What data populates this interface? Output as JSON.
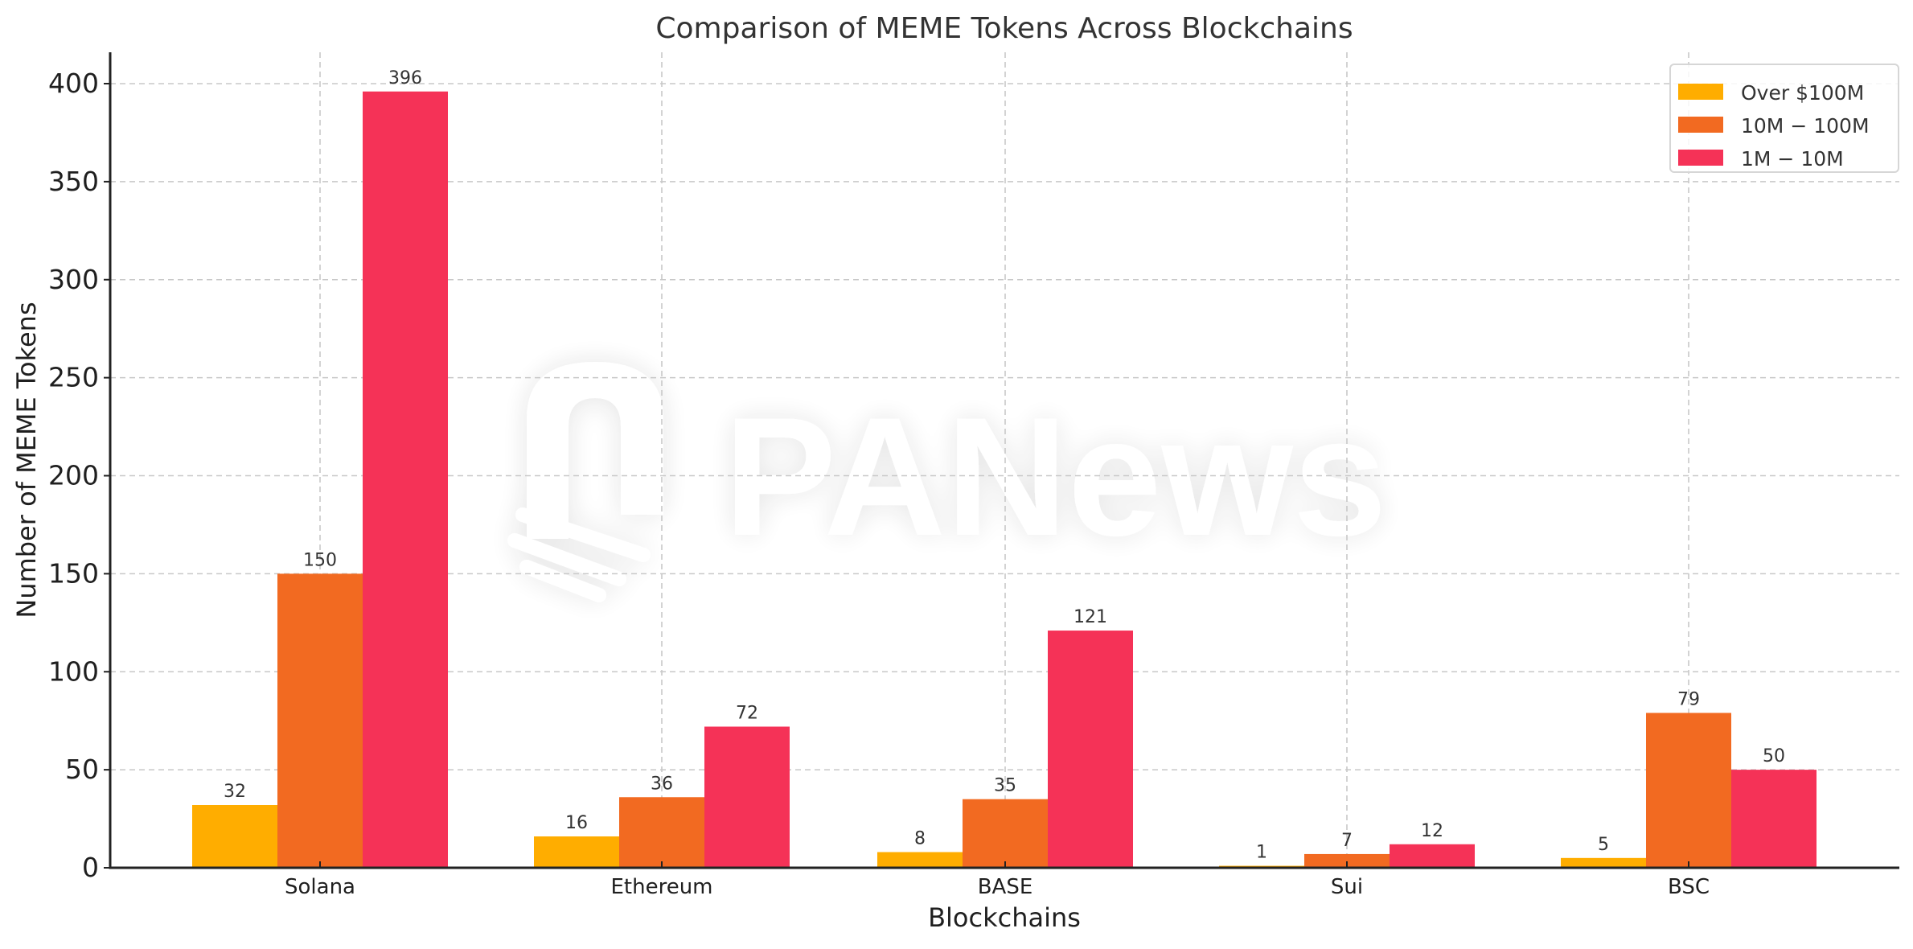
{
  "chart_data": {
    "type": "bar",
    "title": "Comparison of MEME Tokens Across Blockchains",
    "xlabel": "Blockchains",
    "ylabel": "Number of MEME Tokens",
    "categories": [
      "Solana",
      "Ethereum",
      "BASE",
      "Sui",
      "BSC"
    ],
    "series": [
      {
        "name": "Over $100M",
        "color": "#FFAD00",
        "values": [
          32,
          16,
          8,
          1,
          5
        ]
      },
      {
        "name": "$10M-$100M",
        "legend_label": "10M − 100M",
        "color": "#F26A21",
        "values": [
          150,
          36,
          35,
          7,
          79
        ]
      },
      {
        "name": "$1M-$10M",
        "legend_label": "1M − 10M",
        "color": "#F53257",
        "values": [
          396,
          72,
          121,
          12,
          50
        ]
      }
    ],
    "ylim": [
      0,
      415
    ],
    "yticks": [
      0,
      50,
      100,
      150,
      200,
      250,
      300,
      350,
      400
    ],
    "grid": true,
    "grid_style": "dashed",
    "legend_position": "upper right",
    "bar_value_labels": true,
    "watermark": "PANews"
  }
}
